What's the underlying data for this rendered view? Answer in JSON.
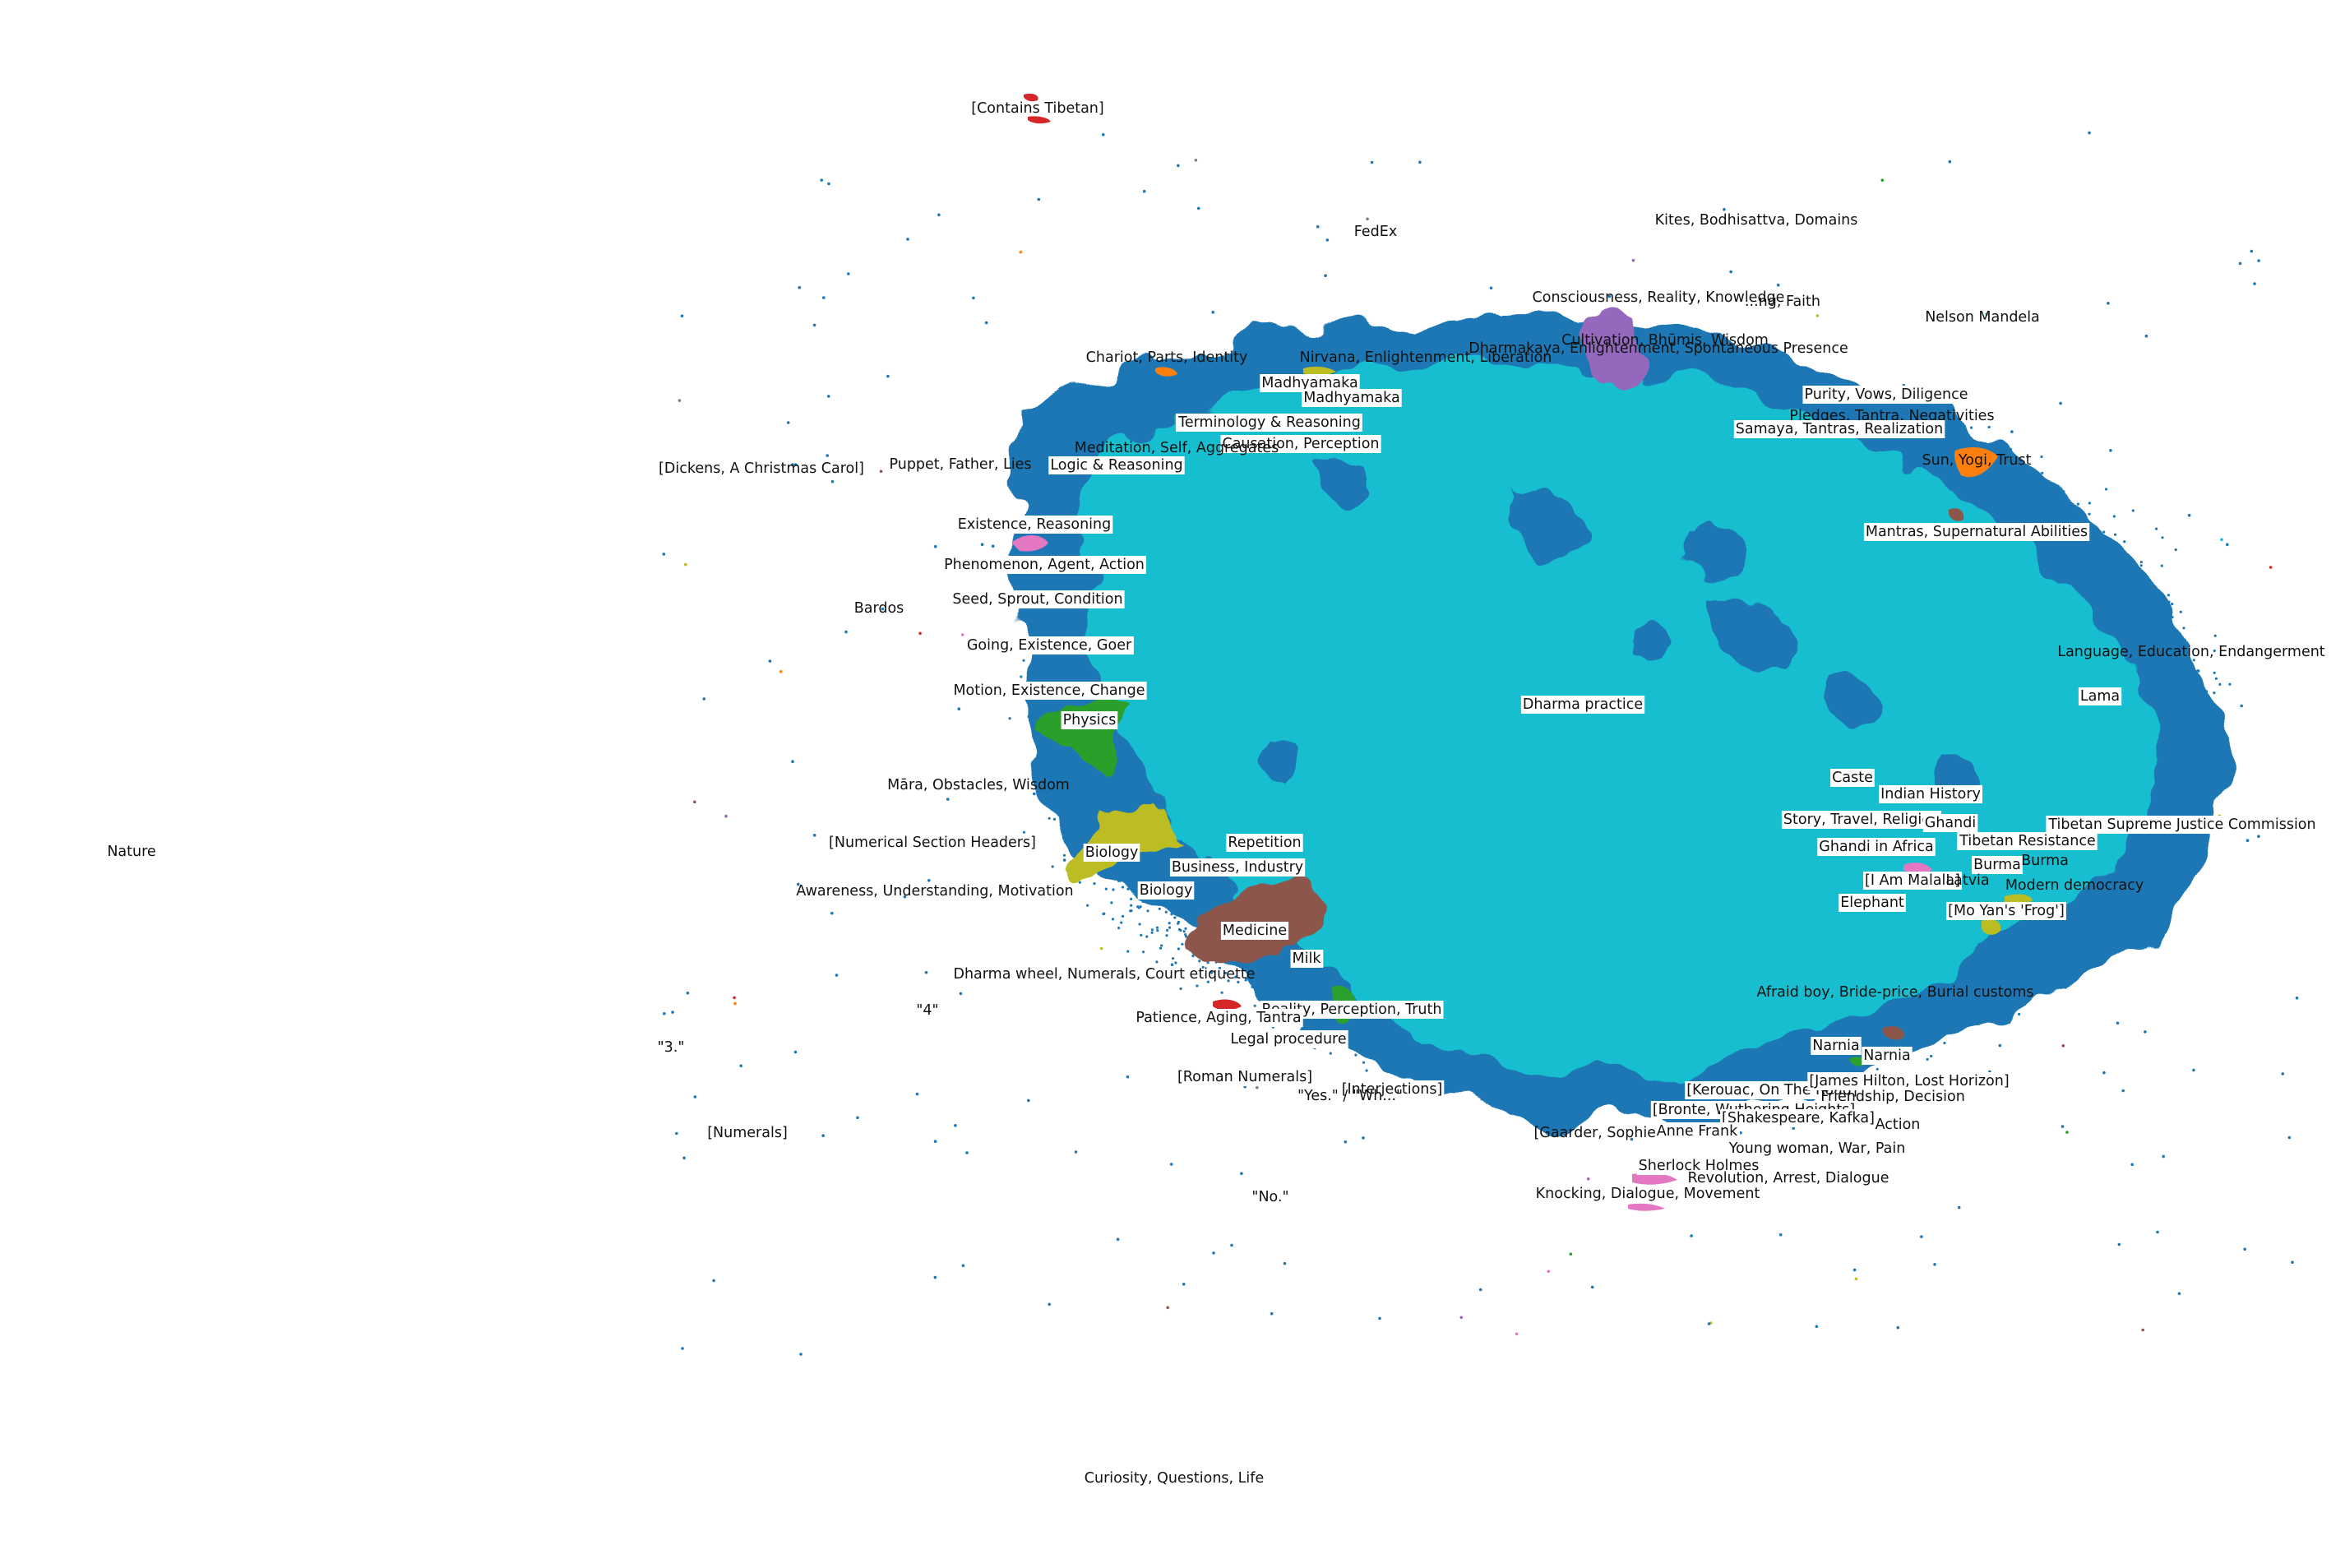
{
  "chart_data": {
    "type": "scatter",
    "title": "",
    "xlabel": "",
    "ylabel": "",
    "axes_visible": false,
    "grid": false,
    "legend": "none",
    "colors": {
      "background": "#ffffff",
      "main_cluster": "#17becf",
      "scatter_points": "#1f77b4",
      "tab_palette": [
        "#1f77b4",
        "#ff7f0e",
        "#2ca02c",
        "#d62728",
        "#9467bd",
        "#8c564b",
        "#e377c2",
        "#7f7f7f",
        "#bcbd22",
        "#17becf"
      ]
    },
    "topic_labels": [
      "[Contains Tibetan]",
      "FedEx",
      "Kites, Bodhisattva, Domains",
      "Consciousness, Reality, Knowledge",
      "...ng, Faith",
      "Nelson Mandela",
      "Cultivation, Bhūmis, Wisdom",
      "Dharmakaya, Enlightenment, Spontaneous Presence",
      "Nirvana, Enlightenment, Liberation",
      "Chariot, Parts, Identity",
      "Madhyamaka",
      "Madhyamaka",
      "Terminology & Reasoning",
      "Causation, Perception",
      "Meditation, Self, Aggregates",
      "Logic & Reasoning",
      "Puppet, Father, Lies",
      "[Dickens, A Christmas Carol]",
      "Purity, Vows, Diligence",
      "Pledges, Tantra, Negativities",
      "Samaya, Tantras, Realization",
      "Sun, Yogi, Trust",
      "Mantras, Supernatural Abilities",
      "Existence, Reasoning",
      "Phenomenon, Agent, Action",
      "Seed, Sprout, Condition",
      "Bardos",
      "Going, Existence, Goer",
      "Language, Education, Endangerment",
      "Lama",
      "Motion, Existence, Change",
      "Dharma practice",
      "Physics",
      "Māra, Obstacles, Wisdom",
      "Caste",
      "Indian History",
      "Story, Travel, Religion",
      "Ghandi",
      "Tibetan Supreme Justice Commission",
      "Tibetan Resistance",
      "Ghandi in Africa",
      "[Numerical Section Headers]",
      "Nature",
      "Repetition",
      "Biology",
      "Business, Industry",
      "Burma",
      "Burma",
      "[I Am Malala]",
      "Latvia",
      "Modern democracy",
      "Awareness, Understanding, Motivation",
      "Biology",
      "Elephant",
      "[Mo Yan's 'Frog']",
      "Medicine",
      "Milk",
      "Dharma wheel, Numerals, Court etiquette",
      "\"4\"",
      "Afraid boy, Bride-price, Burial customs",
      "Reality, Perception, Truth",
      "Patience, Aging, Tantra",
      "\"3.\"",
      "Legal procedure",
      "Narnia",
      "Narnia",
      "[Roman Numerals]",
      "[Interjections]",
      "\"Yes.\" / \"Wh...\"",
      "[Kerouac, On The Road]",
      "[James Hilton, Lost Horizon]",
      "Friendship, Decision",
      "[Bronte, Wuthering Heights]",
      "[Shakespeare, Kafka]",
      "Action",
      "[Numerals]",
      "[Gaarder, Sophie's World]",
      "Anne Frank",
      "Young woman, War, Pain",
      "Sherlock Holmes",
      "Revolution, Arrest, Dialogue",
      "Knocking, Dialogue, Movement",
      "\"No.\"",
      "Curiosity, Questions, Life"
    ]
  }
}
